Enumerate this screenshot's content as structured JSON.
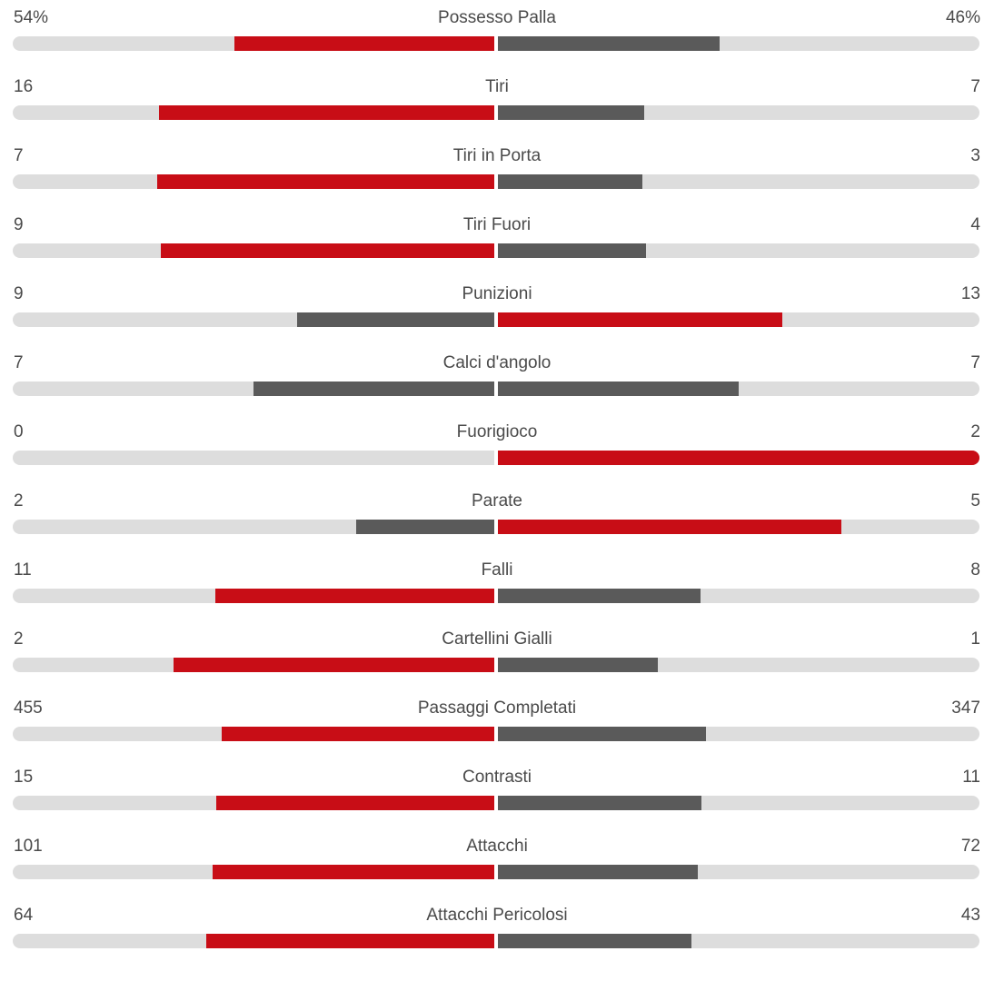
{
  "colors": {
    "leader": "#c80d16",
    "trailer": "#5a5a5a",
    "track": "#dddddd"
  },
  "stats": [
    {
      "label": "Possesso Palla",
      "home": "54%",
      "away": "46%",
      "home_share": 0.54,
      "away_share": 0.46
    },
    {
      "label": "Tiri",
      "home": "16",
      "away": "7",
      "home_share": 0.696,
      "away_share": 0.304
    },
    {
      "label": "Tiri in Porta",
      "home": "7",
      "away": "3",
      "home_share": 0.7,
      "away_share": 0.3
    },
    {
      "label": "Tiri Fuori",
      "home": "9",
      "away": "4",
      "home_share": 0.692,
      "away_share": 0.308
    },
    {
      "label": "Punizioni",
      "home": "9",
      "away": "13",
      "home_share": 0.409,
      "away_share": 0.591
    },
    {
      "label": "Calci d'angolo",
      "home": "7",
      "away": "7",
      "home_share": 0.5,
      "away_share": 0.5
    },
    {
      "label": "Fuorigioco",
      "home": "0",
      "away": "2",
      "home_share": 0.0,
      "away_share": 1.0
    },
    {
      "label": "Parate",
      "home": "2",
      "away": "5",
      "home_share": 0.286,
      "away_share": 0.714
    },
    {
      "label": "Falli",
      "home": "11",
      "away": "8",
      "home_share": 0.579,
      "away_share": 0.421
    },
    {
      "label": "Cartellini Gialli",
      "home": "2",
      "away": "1",
      "home_share": 0.667,
      "away_share": 0.333
    },
    {
      "label": "Passaggi Completati",
      "home": "455",
      "away": "347",
      "home_share": 0.567,
      "away_share": 0.433
    },
    {
      "label": "Contrasti",
      "home": "15",
      "away": "11",
      "home_share": 0.577,
      "away_share": 0.423
    },
    {
      "label": "Attacchi",
      "home": "101",
      "away": "72",
      "home_share": 0.584,
      "away_share": 0.416
    },
    {
      "label": "Attacchi Pericolosi",
      "home": "64",
      "away": "43",
      "home_share": 0.598,
      "away_share": 0.402
    }
  ]
}
